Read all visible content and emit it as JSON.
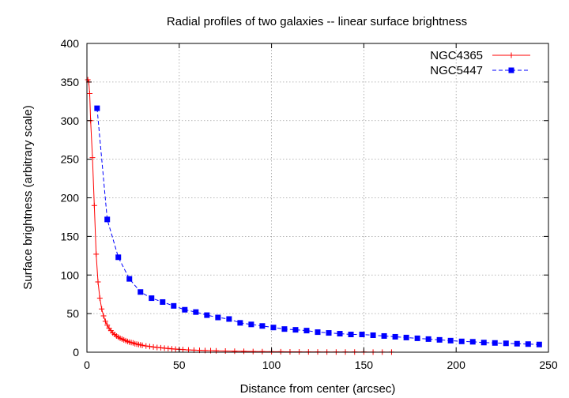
{
  "chart_data": {
    "type": "line",
    "title": "Radial profiles of two galaxies -- linear surface brightness",
    "xlabel": "Distance from center (arcsec)",
    "ylabel": "Surface brightness (arbitrary scale)",
    "xlim": [
      0,
      250
    ],
    "ylim": [
      0,
      400
    ],
    "xticks": [
      0,
      50,
      100,
      150,
      200,
      250
    ],
    "yticks": [
      0,
      50,
      100,
      150,
      200,
      250,
      300,
      350,
      400
    ],
    "grid": true,
    "legend_position": "top-right",
    "series": [
      {
        "name": "NGC4365",
        "color": "#ff0000",
        "line_style": "solid",
        "marker": "plus",
        "x": [
          0.5,
          1,
          1.5,
          2,
          3,
          4,
          5,
          6,
          7,
          8,
          9,
          10,
          11,
          12,
          13,
          14,
          15,
          16,
          17,
          18,
          19,
          20,
          21,
          22,
          23,
          24,
          25,
          26,
          27,
          28,
          29,
          30,
          32,
          34,
          36,
          38,
          40,
          42,
          44,
          46,
          48,
          50,
          52,
          55,
          58,
          61,
          64,
          67,
          70,
          75,
          80,
          85,
          90,
          95,
          100,
          105,
          110,
          115,
          120,
          125,
          130,
          135,
          140,
          145,
          150,
          155,
          160,
          165
        ],
        "y": [
          353,
          350,
          335,
          300,
          252,
          190,
          127,
          91,
          70,
          56,
          47,
          40,
          35,
          31,
          28,
          25,
          23,
          21,
          19.5,
          18,
          17,
          16,
          15,
          14,
          13,
          12.5,
          12,
          11,
          10.5,
          10,
          9.5,
          9,
          8,
          7.4,
          6.8,
          6.2,
          5.7,
          5.2,
          4.8,
          4.4,
          4.0,
          3.7,
          3.4,
          3.0,
          2.7,
          2.4,
          2.2,
          2.0,
          1.8,
          1.5,
          1.3,
          1.1,
          0.95,
          0.8,
          0.7,
          0.6,
          0.5,
          0.45,
          0.4,
          0.35,
          0.3,
          0.28,
          0.25,
          0.22,
          0.2,
          0.18,
          0.15,
          0.13
        ]
      },
      {
        "name": "NGC5447",
        "color": "#0000ff",
        "line_style": "dashed",
        "marker": "square",
        "x": [
          5.5,
          11,
          17,
          23,
          29,
          35,
          41,
          47,
          53,
          59,
          65,
          71,
          77,
          83,
          89,
          95,
          101,
          107,
          113,
          119,
          125,
          131,
          137,
          143,
          149,
          155,
          161,
          167,
          173,
          179,
          185,
          191,
          197,
          203,
          209,
          215,
          221,
          227,
          233,
          239,
          245
        ],
        "y": [
          316,
          172,
          123,
          95,
          78,
          70,
          65,
          60,
          55,
          52,
          48,
          45,
          43,
          38,
          36,
          34,
          32,
          30,
          29,
          28,
          26,
          25,
          24,
          23,
          23,
          22,
          21,
          20,
          19,
          18,
          17,
          16,
          15,
          14,
          13.5,
          12.5,
          12,
          11.5,
          11,
          10.5,
          10
        ]
      }
    ]
  }
}
